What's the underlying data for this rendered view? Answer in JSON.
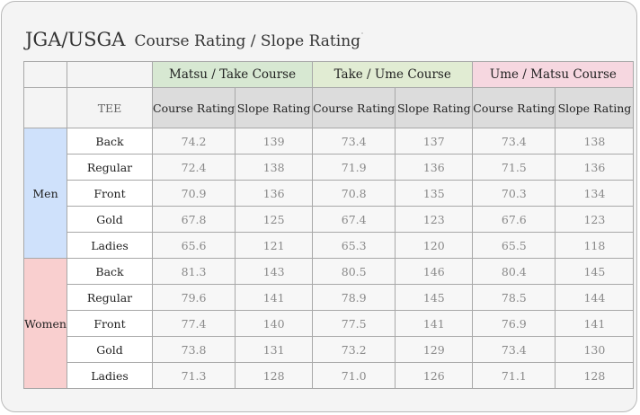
{
  "title": {
    "main": "JGA/USGA",
    "sub": "Course Rating / Slope Rating"
  },
  "table": {
    "course_groups": [
      "Matsu / Take Course",
      "Take / Ume Course",
      "Ume / Matsu Course"
    ],
    "tee_header": "TEE",
    "sub_headers": [
      "Course Rating",
      "Slope Rating"
    ],
    "categories": [
      {
        "label": "Men",
        "rows": [
          {
            "tee": "Back",
            "values": [
              "74.2",
              "139",
              "73.4",
              "137",
              "73.4",
              "138"
            ]
          },
          {
            "tee": "Regular",
            "values": [
              "72.4",
              "138",
              "71.9",
              "136",
              "71.5",
              "136"
            ]
          },
          {
            "tee": "Front",
            "values": [
              "70.9",
              "136",
              "70.8",
              "135",
              "70.3",
              "134"
            ]
          },
          {
            "tee": "Gold",
            "values": [
              "67.8",
              "125",
              "67.4",
              "123",
              "67.6",
              "123"
            ]
          },
          {
            "tee": "Ladies",
            "values": [
              "65.6",
              "121",
              "65.3",
              "120",
              "65.5",
              "118"
            ]
          }
        ]
      },
      {
        "label": "Women",
        "rows": [
          {
            "tee": "Back",
            "values": [
              "81.3",
              "143",
              "80.5",
              "146",
              "80.4",
              "145"
            ]
          },
          {
            "tee": "Regular",
            "values": [
              "79.6",
              "141",
              "78.9",
              "145",
              "78.5",
              "144"
            ]
          },
          {
            "tee": "Front",
            "values": [
              "77.4",
              "140",
              "77.5",
              "141",
              "76.9",
              "141"
            ]
          },
          {
            "tee": "Gold",
            "values": [
              "73.8",
              "131",
              "73.2",
              "129",
              "73.4",
              "130"
            ]
          },
          {
            "tee": "Ladies",
            "values": [
              "71.3",
              "128",
              "71.0",
              "126",
              "71.1",
              "128"
            ]
          }
        ]
      }
    ]
  }
}
